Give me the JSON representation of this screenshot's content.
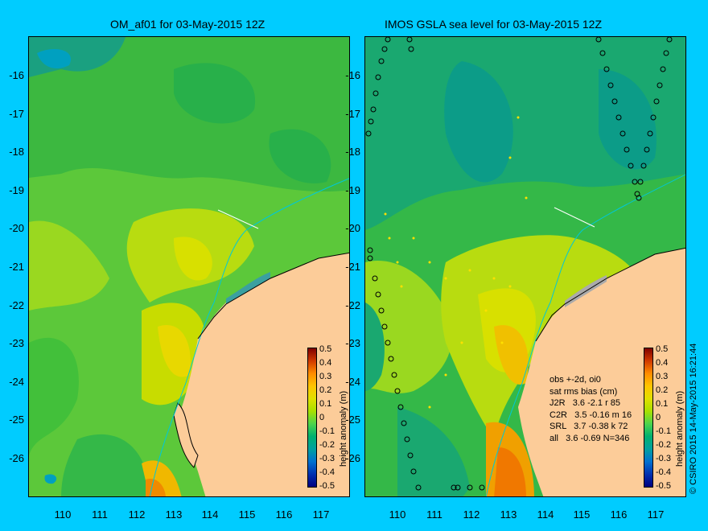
{
  "left_panel": {
    "title": "OM_af01 for 03-May-2015 12Z"
  },
  "right_panel": {
    "title": "IMOS GSLA sea level  for 03-May-2015 12Z",
    "stats": [
      "obs +-2d, oi0",
      "sat rms bias (cm)",
      "J2R   3.6 -2.1 r 85",
      "C2R   3.5 -0.16 m 16",
      "SRL   3.7 -0.38 k 72",
      "all   3.6 -0.69 N=346"
    ]
  },
  "y_axis": [
    "-16",
    "-17",
    "-18",
    "-19",
    "-20",
    "-21",
    "-22",
    "-23",
    "-24",
    "-25",
    "-26"
  ],
  "x_axis": [
    "110",
    "111",
    "112",
    "113",
    "114",
    "115",
    "116",
    "117"
  ],
  "colorbar": {
    "labels": [
      "0.5",
      "0.4",
      "0.3",
      "0.2",
      "0.1",
      "0",
      "-0.1",
      "-0.2",
      "-0.3",
      "-0.4",
      "-0.5"
    ],
    "title": "height anomaly (m)"
  },
  "credit": "© CSIRO 2015  14-May-2015 16:21:44",
  "colors": {
    "background": "#00ccff",
    "land": "#fccc99",
    "sea_mid": "#5cc83a",
    "sea_high": "#d8e000",
    "coast": "#00c8d8"
  }
}
